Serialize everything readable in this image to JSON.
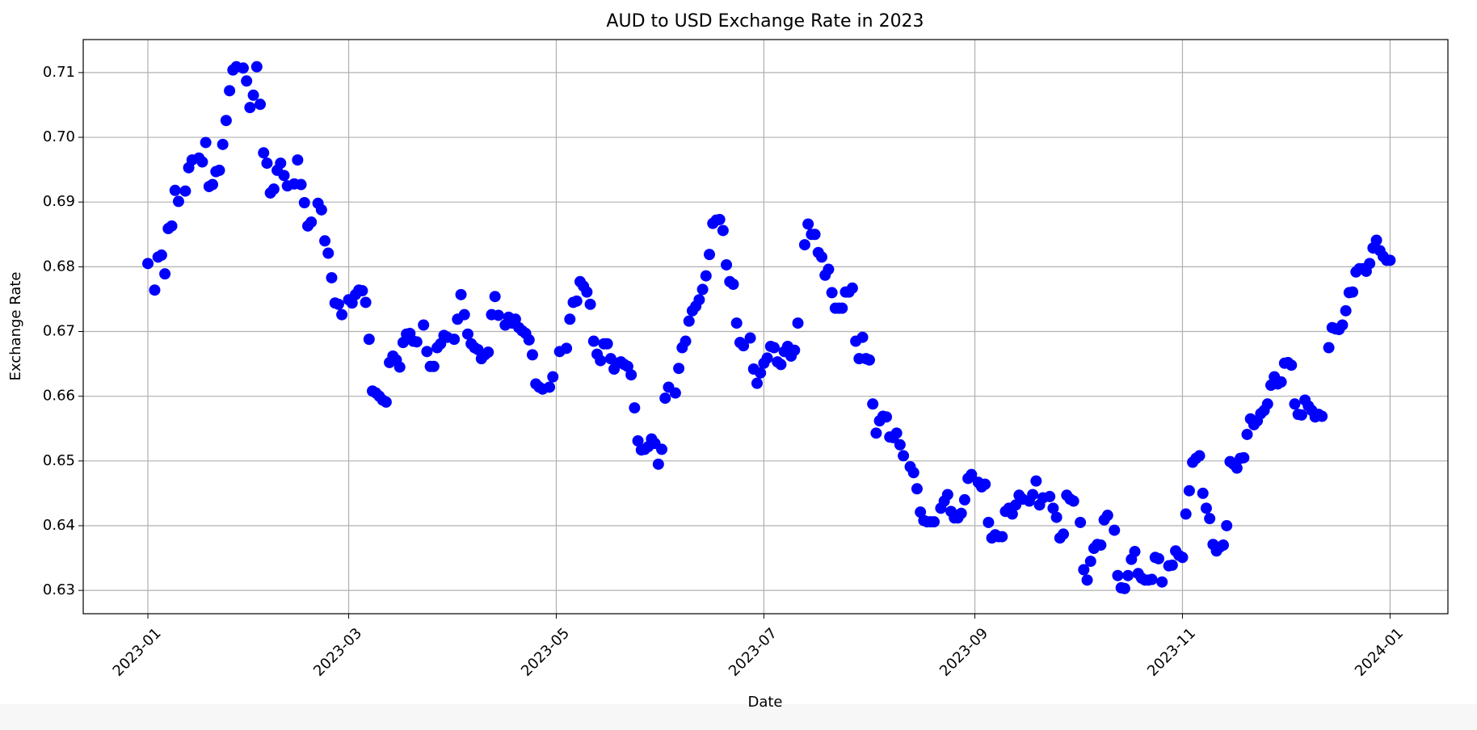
{
  "chart_data": {
    "type": "scatter",
    "title": "AUD to USD Exchange Rate in 2023",
    "x_label": "Date",
    "y_label": "Exchange Rate",
    "color": "#0000ff",
    "grid": true,
    "xlim": [
      "2022-12-13",
      "2024-01-18"
    ],
    "ylim": [
      0.6264,
      0.7151
    ],
    "xticks": [
      "2023-01",
      "2023-03",
      "2023-05",
      "2023-07",
      "2023-09",
      "2023-11",
      "2024-01"
    ],
    "yticks": [
      0.63,
      0.64,
      0.65,
      0.66,
      0.67,
      0.68,
      0.69,
      {
        "value": 0.7,
        "label": "0.70"
      },
      0.71
    ],
    "x": [
      "2023-01-01",
      "2023-01-03",
      "2023-01-04",
      "2023-01-05",
      "2023-01-06",
      "2023-01-07",
      "2023-01-08",
      "2023-01-09",
      "2023-01-10",
      "2023-01-12",
      "2023-01-13",
      "2023-01-14",
      "2023-01-16",
      "2023-01-17",
      "2023-01-18",
      "2023-01-19",
      "2023-01-20",
      "2023-01-21",
      "2023-01-22",
      "2023-01-23",
      "2023-01-24",
      "2023-01-25",
      "2023-01-26",
      "2023-01-27",
      "2023-01-29",
      "2023-01-30",
      "2023-01-31",
      "2023-02-01",
      "2023-02-02",
      "2023-02-03",
      "2023-02-04",
      "2023-02-05",
      "2023-02-06",
      "2023-02-07",
      "2023-02-08",
      "2023-02-09",
      "2023-02-10",
      "2023-02-11",
      "2023-02-13",
      "2023-02-14",
      "2023-02-15",
      "2023-02-16",
      "2023-02-17",
      "2023-02-18",
      "2023-02-20",
      "2023-02-21",
      "2023-02-22",
      "2023-02-23",
      "2023-02-24",
      "2023-02-25",
      "2023-02-26",
      "2023-02-27",
      "2023-03-01",
      "2023-03-02",
      "2023-03-03",
      "2023-03-04",
      "2023-03-05",
      "2023-03-06",
      "2023-03-07",
      "2023-03-08",
      "2023-03-09",
      "2023-03-10",
      "2023-03-11",
      "2023-03-12",
      "2023-03-13",
      "2023-03-14",
      "2023-03-15",
      "2023-03-16",
      "2023-03-17",
      "2023-03-18",
      "2023-03-19",
      "2023-03-20",
      "2023-03-21",
      "2023-03-23",
      "2023-03-24",
      "2023-03-25",
      "2023-03-26",
      "2023-03-27",
      "2023-03-28",
      "2023-03-29",
      "2023-03-30",
      "2023-04-01",
      "2023-04-02",
      "2023-04-03",
      "2023-04-04",
      "2023-04-05",
      "2023-04-06",
      "2023-04-07",
      "2023-04-08",
      "2023-04-09",
      "2023-04-10",
      "2023-04-11",
      "2023-04-12",
      "2023-04-13",
      "2023-04-14",
      "2023-04-16",
      "2023-04-17",
      "2023-04-18",
      "2023-04-19",
      "2023-04-20",
      "2023-04-21",
      "2023-04-22",
      "2023-04-23",
      "2023-04-24",
      "2023-04-25",
      "2023-04-26",
      "2023-04-27",
      "2023-04-29",
      "2023-04-30",
      "2023-05-02",
      "2023-05-04",
      "2023-05-05",
      "2023-05-06",
      "2023-05-07",
      "2023-05-08",
      "2023-05-09",
      "2023-05-10",
      "2023-05-11",
      "2023-05-12",
      "2023-05-13",
      "2023-05-14",
      "2023-05-15",
      "2023-05-16",
      "2023-05-17",
      "2023-05-18",
      "2023-05-19",
      "2023-05-20",
      "2023-05-21",
      "2023-05-22",
      "2023-05-23",
      "2023-05-24",
      "2023-05-25",
      "2023-05-26",
      "2023-05-27",
      "2023-05-28",
      "2023-05-29",
      "2023-05-30",
      "2023-05-31",
      "2023-06-01",
      "2023-06-02",
      "2023-06-03",
      "2023-06-05",
      "2023-06-06",
      "2023-06-07",
      "2023-06-08",
      "2023-06-09",
      "2023-06-10",
      "2023-06-11",
      "2023-06-12",
      "2023-06-13",
      "2023-06-14",
      "2023-06-15",
      "2023-06-16",
      "2023-06-17",
      "2023-06-18",
      "2023-06-19",
      "2023-06-20",
      "2023-06-21",
      "2023-06-22",
      "2023-06-23",
      "2023-06-24",
      "2023-06-25",
      "2023-06-27",
      "2023-06-28",
      "2023-06-29",
      "2023-06-30",
      "2023-07-01",
      "2023-07-02",
      "2023-07-03",
      "2023-07-04",
      "2023-07-05",
      "2023-07-06",
      "2023-07-07",
      "2023-07-08",
      "2023-07-09",
      "2023-07-10",
      "2023-07-11",
      "2023-07-13",
      "2023-07-14",
      "2023-07-15",
      "2023-07-16",
      "2023-07-17",
      "2023-07-18",
      "2023-07-19",
      "2023-07-20",
      "2023-07-21",
      "2023-07-22",
      "2023-07-23",
      "2023-07-24",
      "2023-07-25",
      "2023-07-26",
      "2023-07-27",
      "2023-07-28",
      "2023-07-29",
      "2023-07-30",
      "2023-07-31",
      "2023-08-01",
      "2023-08-02",
      "2023-08-03",
      "2023-08-04",
      "2023-08-05",
      "2023-08-06",
      "2023-08-07",
      "2023-08-08",
      "2023-08-09",
      "2023-08-10",
      "2023-08-11",
      "2023-08-13",
      "2023-08-14",
      "2023-08-15",
      "2023-08-16",
      "2023-08-17",
      "2023-08-18",
      "2023-08-19",
      "2023-08-20",
      "2023-08-22",
      "2023-08-23",
      "2023-08-24",
      "2023-08-25",
      "2023-08-26",
      "2023-08-27",
      "2023-08-28",
      "2023-08-29",
      "2023-08-30",
      "2023-08-31",
      "2023-09-02",
      "2023-09-03",
      "2023-09-04",
      "2023-09-05",
      "2023-09-06",
      "2023-09-07",
      "2023-09-08",
      "2023-09-09",
      "2023-09-10",
      "2023-09-11",
      "2023-09-12",
      "2023-09-13",
      "2023-09-14",
      "2023-09-15",
      "2023-09-17",
      "2023-09-18",
      "2023-09-19",
      "2023-09-20",
      "2023-09-21",
      "2023-09-23",
      "2023-09-24",
      "2023-09-25",
      "2023-09-26",
      "2023-09-27",
      "2023-09-28",
      "2023-09-29",
      "2023-09-30",
      "2023-10-02",
      "2023-10-03",
      "2023-10-04",
      "2023-10-05",
      "2023-10-06",
      "2023-10-07",
      "2023-10-08",
      "2023-10-09",
      "2023-10-10",
      "2023-10-12",
      "2023-10-13",
      "2023-10-14",
      "2023-10-15",
      "2023-10-16",
      "2023-10-17",
      "2023-10-18",
      "2023-10-19",
      "2023-10-20",
      "2023-10-21",
      "2023-10-22",
      "2023-10-23",
      "2023-10-24",
      "2023-10-25",
      "2023-10-26",
      "2023-10-28",
      "2023-10-29",
      "2023-10-30",
      "2023-10-31",
      "2023-11-01",
      "2023-11-02",
      "2023-11-03",
      "2023-11-04",
      "2023-11-05",
      "2023-11-06",
      "2023-11-07",
      "2023-11-08",
      "2023-11-09",
      "2023-11-10",
      "2023-11-11",
      "2023-11-12",
      "2023-11-13",
      "2023-11-14",
      "2023-11-15",
      "2023-11-16",
      "2023-11-17",
      "2023-11-18",
      "2023-11-19",
      "2023-11-20",
      "2023-11-21",
      "2023-11-22",
      "2023-11-23",
      "2023-11-24",
      "2023-11-25",
      "2023-11-26",
      "2023-11-27",
      "2023-11-28",
      "2023-11-29",
      "2023-11-30",
      "2023-12-01",
      "2023-12-02",
      "2023-12-03",
      "2023-12-04",
      "2023-12-05",
      "2023-12-06",
      "2023-12-07",
      "2023-12-08",
      "2023-12-09",
      "2023-12-10",
      "2023-12-11",
      "2023-12-12",
      "2023-12-14",
      "2023-12-15",
      "2023-12-16",
      "2023-12-17",
      "2023-12-18",
      "2023-12-19",
      "2023-12-20",
      "2023-12-21",
      "2023-12-22",
      "2023-12-23",
      "2023-12-24",
      "2023-12-25",
      "2023-12-26",
      "2023-12-27",
      "2023-12-28",
      "2023-12-29",
      "2023-12-30",
      "2023-12-31",
      "2024-01-01"
    ],
    "values": [
      0.6805,
      0.6764,
      0.6815,
      0.6818,
      0.6789,
      0.6859,
      0.6863,
      0.6918,
      0.6901,
      0.6917,
      0.6953,
      0.6965,
      0.6968,
      0.6962,
      0.6992,
      0.6924,
      0.6927,
      0.6947,
      0.6949,
      0.6989,
      0.7026,
      0.7072,
      0.7104,
      0.7109,
      0.7107,
      0.7087,
      0.7046,
      0.7065,
      0.7109,
      0.7051,
      0.6976,
      0.696,
      0.6914,
      0.692,
      0.6949,
      0.696,
      0.6941,
      0.6925,
      0.6928,
      0.6965,
      0.6927,
      0.6899,
      0.6863,
      0.6869,
      0.6898,
      0.6888,
      0.684,
      0.6821,
      0.6783,
      0.6744,
      0.6742,
      0.6726,
      0.6749,
      0.6744,
      0.6757,
      0.6764,
      0.6763,
      0.6745,
      0.6688,
      0.6608,
      0.6605,
      0.66,
      0.6594,
      0.6591,
      0.6652,
      0.6662,
      0.6656,
      0.6645,
      0.6683,
      0.6696,
      0.6697,
      0.6685,
      0.6684,
      0.671,
      0.6669,
      0.6646,
      0.6646,
      0.6675,
      0.6681,
      0.6694,
      0.6691,
      0.6688,
      0.6719,
      0.6757,
      0.6726,
      0.6696,
      0.6681,
      0.6675,
      0.6672,
      0.6658,
      0.6664,
      0.6668,
      0.6726,
      0.6754,
      0.6725,
      0.671,
      0.6722,
      0.6713,
      0.6719,
      0.6706,
      0.6701,
      0.6697,
      0.6687,
      0.6664,
      0.6619,
      0.6614,
      0.6611,
      0.6614,
      0.663,
      0.6669,
      0.6674,
      0.6719,
      0.6745,
      0.6747,
      0.6777,
      0.677,
      0.6761,
      0.6742,
      0.6685,
      0.6665,
      0.6655,
      0.6681,
      0.6681,
      0.6658,
      0.6642,
      0.6651,
      0.6653,
      0.6649,
      0.6646,
      0.6633,
      0.6582,
      0.6531,
      0.6517,
      0.6518,
      0.6522,
      0.6534,
      0.6527,
      0.6495,
      0.6518,
      0.6597,
      0.6614,
      0.6605,
      0.6643,
      0.6675,
      0.6685,
      0.6716,
      0.6732,
      0.6739,
      0.6749,
      0.6765,
      0.6786,
      0.6819,
      0.6867,
      0.6872,
      0.6873,
      0.6856,
      0.6803,
      0.6777,
      0.6773,
      0.6713,
      0.6683,
      0.6678,
      0.669,
      0.6642,
      0.662,
      0.6636,
      0.6651,
      0.6659,
      0.6677,
      0.6675,
      0.6653,
      0.6649,
      0.6669,
      0.6677,
      0.6662,
      0.6671,
      0.6713,
      0.6834,
      0.6866,
      0.685,
      0.685,
      0.6822,
      0.6815,
      0.6787,
      0.6796,
      0.676,
      0.6736,
      0.6736,
      0.6736,
      0.6761,
      0.6761,
      0.6767,
      0.6685,
      0.6658,
      0.6691,
      0.6658,
      0.6656,
      0.6588,
      0.6543,
      0.6562,
      0.6569,
      0.6568,
      0.6537,
      0.6536,
      0.6543,
      0.6525,
      0.6508,
      0.6491,
      0.6482,
      0.6457,
      0.6421,
      0.6408,
      0.6406,
      0.6406,
      0.6406,
      0.6427,
      0.6438,
      0.6448,
      0.6422,
      0.6412,
      0.6412,
      0.6419,
      0.644,
      0.6473,
      0.6479,
      0.6467,
      0.646,
      0.6464,
      0.6405,
      0.6381,
      0.6386,
      0.6383,
      0.6383,
      0.6422,
      0.6427,
      0.6418,
      0.6432,
      0.6447,
      0.6441,
      0.6438,
      0.6448,
      0.6469,
      0.6432,
      0.6443,
      0.6445,
      0.6427,
      0.6413,
      0.6381,
      0.6387,
      0.6447,
      0.6441,
      0.6438,
      0.6405,
      0.6332,
      0.6316,
      0.6345,
      0.6365,
      0.6371,
      0.637,
      0.6409,
      0.6416,
      0.6393,
      0.6323,
      0.6304,
      0.6303,
      0.6323,
      0.6348,
      0.636,
      0.6326,
      0.6319,
      0.6316,
      0.6316,
      0.6317,
      0.6351,
      0.6349,
      0.6313,
      0.6338,
      0.6339,
      0.6361,
      0.6354,
      0.6351,
      0.6418,
      0.6454,
      0.6498,
      0.6504,
      0.6508,
      0.645,
      0.6427,
      0.6411,
      0.6371,
      0.6361,
      0.6367,
      0.637,
      0.64,
      0.6499,
      0.6495,
      0.6489,
      0.6504,
      0.6505,
      0.6541,
      0.6565,
      0.6556,
      0.6562,
      0.6573,
      0.6578,
      0.6588,
      0.6617,
      0.663,
      0.6619,
      0.6622,
      0.6651,
      0.6652,
      0.6648,
      0.6588,
      0.6572,
      0.6571,
      0.6594,
      0.6585,
      0.6578,
      0.6568,
      0.6572,
      0.6569,
      0.6675,
      0.6706,
      0.6704,
      0.6703,
      0.671,
      0.6732,
      0.676,
      0.6761,
      0.6792,
      0.6797,
      0.6797,
      0.6793,
      0.6805,
      0.6829,
      0.6841,
      0.6825,
      0.6816,
      0.681,
      0.681
    ]
  }
}
